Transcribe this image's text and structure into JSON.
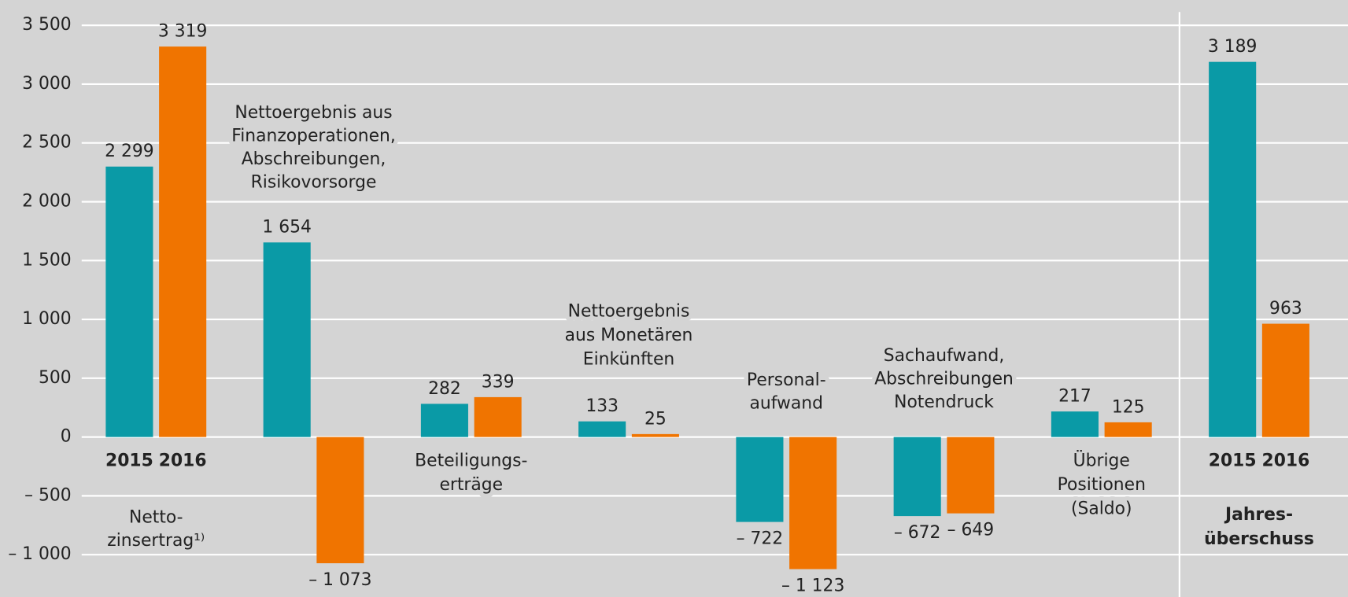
{
  "chart_data": {
    "type": "bar",
    "categories": [
      [
        "Netto-",
        "zinsertrag¹⁾"
      ],
      [
        "Nettoergebnis aus",
        "Finanzoperationen,",
        "Abschreibungen,",
        "Risikovorsorge"
      ],
      [
        "Beteiligungs-",
        "erträge"
      ],
      [
        "Nettoergebnis",
        "aus Monetären",
        "Einkünften"
      ],
      [
        "Personal-",
        "aufwand"
      ],
      [
        "Sachaufwand,",
        "Abschreibungen",
        "Notendruck"
      ],
      [
        "Übrige",
        "Positionen",
        "(Saldo)"
      ],
      [
        "Jahres-",
        "überschuss"
      ]
    ],
    "series": [
      {
        "name": "2015",
        "color": "#0a9aa6",
        "values": [
          2299,
          1654,
          282,
          133,
          -722,
          -672,
          217,
          3189
        ],
        "value_labels": [
          "2 299",
          "1 654",
          "282",
          "133",
          "– 722",
          "– 672",
          "217",
          "3 189"
        ]
      },
      {
        "name": "2016",
        "color": "#f07400",
        "values": [
          3319,
          -1073,
          339,
          25,
          -1123,
          -649,
          125,
          963
        ],
        "value_labels": [
          "3 319",
          "– 1 073",
          "339",
          "25",
          "– 1 123",
          "– 649",
          "125",
          "963"
        ]
      }
    ],
    "ylim": [
      -1360,
      3715
    ],
    "yticks": [
      {
        "value": -1000,
        "label": "– 1 000"
      },
      {
        "value": -500,
        "label": "–  500"
      },
      0,
      500,
      {
        "value": 1000,
        "label": "1 000"
      },
      {
        "value": 1500,
        "label": "1 500"
      },
      {
        "value": 2000,
        "label": "2 000"
      },
      {
        "value": 2500,
        "label": "2 500"
      },
      {
        "value": 3000,
        "label": "3 000"
      },
      {
        "value": 3500,
        "label": "3 500"
      }
    ],
    "grid": true
  }
}
